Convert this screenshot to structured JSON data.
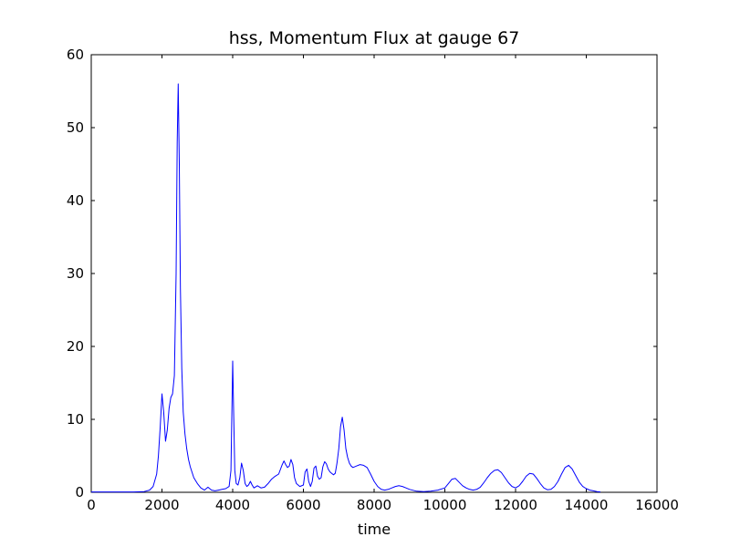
{
  "chart_data": {
    "type": "line",
    "title": "hss, Momentum Flux at gauge 67",
    "xlabel": "time",
    "ylabel": "",
    "xlim": [
      0,
      16000
    ],
    "ylim": [
      0,
      60
    ],
    "xticks": [
      0,
      2000,
      4000,
      6000,
      8000,
      10000,
      12000,
      14000,
      16000
    ],
    "yticks": [
      0,
      10,
      20,
      30,
      40,
      50,
      60
    ],
    "grid": false,
    "legend": "none",
    "line_color": "#0000ff",
    "axis_color": "#000000",
    "background_color": "#ffffff",
    "series": [
      {
        "name": "hss momentum flux at gauge 67",
        "points": [
          [
            0,
            0.05
          ],
          [
            400,
            0.05
          ],
          [
            800,
            0.05
          ],
          [
            1200,
            0.05
          ],
          [
            1500,
            0.1
          ],
          [
            1650,
            0.3
          ],
          [
            1750,
            0.8
          ],
          [
            1850,
            2.5
          ],
          [
            1900,
            5
          ],
          [
            1950,
            9
          ],
          [
            2000,
            13.5
          ],
          [
            2050,
            11
          ],
          [
            2100,
            7
          ],
          [
            2150,
            8.5
          ],
          [
            2200,
            11.5
          ],
          [
            2250,
            13
          ],
          [
            2300,
            13.5
          ],
          [
            2350,
            16
          ],
          [
            2400,
            30
          ],
          [
            2430,
            48
          ],
          [
            2460,
            56
          ],
          [
            2490,
            45
          ],
          [
            2520,
            28
          ],
          [
            2560,
            17
          ],
          [
            2600,
            11
          ],
          [
            2650,
            8
          ],
          [
            2700,
            6
          ],
          [
            2750,
            4.5
          ],
          [
            2800,
            3.5
          ],
          [
            2900,
            2
          ],
          [
            3000,
            1.2
          ],
          [
            3100,
            0.6
          ],
          [
            3200,
            0.3
          ],
          [
            3300,
            0.7
          ],
          [
            3400,
            0.3
          ],
          [
            3500,
            0.2
          ],
          [
            3600,
            0.3
          ],
          [
            3700,
            0.4
          ],
          [
            3800,
            0.5
          ],
          [
            3900,
            0.8
          ],
          [
            3950,
            3
          ],
          [
            4000,
            18
          ],
          [
            4030,
            10
          ],
          [
            4060,
            3
          ],
          [
            4100,
            1.2
          ],
          [
            4150,
            1
          ],
          [
            4200,
            2
          ],
          [
            4250,
            4
          ],
          [
            4300,
            3
          ],
          [
            4350,
            1.2
          ],
          [
            4400,
            0.8
          ],
          [
            4450,
            1
          ],
          [
            4500,
            1.5
          ],
          [
            4550,
            1
          ],
          [
            4600,
            0.6
          ],
          [
            4700,
            0.9
          ],
          [
            4800,
            0.6
          ],
          [
            4900,
            0.7
          ],
          [
            5000,
            1.2
          ],
          [
            5100,
            1.8
          ],
          [
            5200,
            2.2
          ],
          [
            5300,
            2.5
          ],
          [
            5400,
            3.8
          ],
          [
            5450,
            4.3
          ],
          [
            5500,
            3.8
          ],
          [
            5550,
            3.4
          ],
          [
            5600,
            3.6
          ],
          [
            5650,
            4.5
          ],
          [
            5700,
            3.8
          ],
          [
            5750,
            2
          ],
          [
            5800,
            1.2
          ],
          [
            5900,
            0.8
          ],
          [
            6000,
            1
          ],
          [
            6050,
            2.8
          ],
          [
            6100,
            3.2
          ],
          [
            6150,
            1.5
          ],
          [
            6200,
            0.8
          ],
          [
            6250,
            1.5
          ],
          [
            6300,
            3.3
          ],
          [
            6350,
            3.6
          ],
          [
            6400,
            2.2
          ],
          [
            6450,
            1.8
          ],
          [
            6500,
            2
          ],
          [
            6550,
            3.5
          ],
          [
            6600,
            4.2
          ],
          [
            6650,
            3.9
          ],
          [
            6700,
            3.2
          ],
          [
            6750,
            2.8
          ],
          [
            6800,
            2.6
          ],
          [
            6850,
            2.4
          ],
          [
            6900,
            2.6
          ],
          [
            6950,
            4
          ],
          [
            7000,
            6
          ],
          [
            7050,
            9
          ],
          [
            7100,
            10.3
          ],
          [
            7150,
            8.5
          ],
          [
            7200,
            6
          ],
          [
            7250,
            4.8
          ],
          [
            7300,
            4
          ],
          [
            7350,
            3.6
          ],
          [
            7400,
            3.4
          ],
          [
            7500,
            3.6
          ],
          [
            7600,
            3.8
          ],
          [
            7700,
            3.7
          ],
          [
            7800,
            3.4
          ],
          [
            7900,
            2.5
          ],
          [
            8000,
            1.5
          ],
          [
            8100,
            0.8
          ],
          [
            8200,
            0.4
          ],
          [
            8300,
            0.3
          ],
          [
            8400,
            0.4
          ],
          [
            8500,
            0.6
          ],
          [
            8600,
            0.8
          ],
          [
            8700,
            0.9
          ],
          [
            8800,
            0.8
          ],
          [
            8900,
            0.6
          ],
          [
            9000,
            0.4
          ],
          [
            9200,
            0.15
          ],
          [
            9400,
            0.1
          ],
          [
            9600,
            0.15
          ],
          [
            9800,
            0.3
          ],
          [
            10000,
            0.6
          ],
          [
            10100,
            1.2
          ],
          [
            10200,
            1.8
          ],
          [
            10300,
            1.9
          ],
          [
            10400,
            1.4
          ],
          [
            10500,
            0.9
          ],
          [
            10600,
            0.6
          ],
          [
            10700,
            0.4
          ],
          [
            10800,
            0.3
          ],
          [
            10900,
            0.4
          ],
          [
            11000,
            0.7
          ],
          [
            11100,
            1.3
          ],
          [
            11200,
            2
          ],
          [
            11300,
            2.6
          ],
          [
            11400,
            3
          ],
          [
            11500,
            3.1
          ],
          [
            11600,
            2.7
          ],
          [
            11700,
            2
          ],
          [
            11800,
            1.3
          ],
          [
            11900,
            0.8
          ],
          [
            12000,
            0.6
          ],
          [
            12100,
            0.9
          ],
          [
            12200,
            1.5
          ],
          [
            12300,
            2.2
          ],
          [
            12400,
            2.6
          ],
          [
            12500,
            2.5
          ],
          [
            12600,
            1.9
          ],
          [
            12700,
            1.2
          ],
          [
            12800,
            0.6
          ],
          [
            12900,
            0.35
          ],
          [
            13000,
            0.4
          ],
          [
            13100,
            0.8
          ],
          [
            13200,
            1.5
          ],
          [
            13300,
            2.5
          ],
          [
            13400,
            3.4
          ],
          [
            13500,
            3.7
          ],
          [
            13600,
            3.2
          ],
          [
            13700,
            2.3
          ],
          [
            13800,
            1.4
          ],
          [
            13900,
            0.8
          ],
          [
            14000,
            0.5
          ],
          [
            14100,
            0.3
          ],
          [
            14200,
            0.2
          ],
          [
            14300,
            0.1
          ],
          [
            14400,
            0.05
          ]
        ]
      }
    ]
  }
}
